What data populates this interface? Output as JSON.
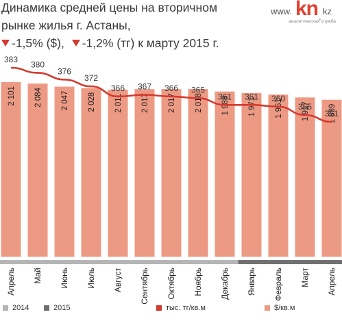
{
  "header": {
    "title_line1": "Динамика средней цены на вторичном",
    "title_line2": "рынке жилья г. Астаны,",
    "title_line3": "-1,5% ($),   -1,2% (тг) к марту 2015 г.",
    "change_usd": "-1,5% ($),",
    "change_kzt": "-1,2% (тг) к марту 2015 г.",
    "indicator_icon": "down-triangle-icon"
  },
  "logo": {
    "www": "www.",
    "kn": "kn",
    "dot": ".",
    "kz": "kz",
    "tagline": "аналитическая служба"
  },
  "legend": {
    "year_2014": "2014",
    "year_2015": "2015",
    "kzt_series": "тыс. тг/кв.м",
    "usd_series": "$/кв.м"
  },
  "colors": {
    "bar": "#ed9a84",
    "line": "#d43a2f",
    "year_2014": "#b5b5b5",
    "year_2015": "#707070",
    "accent": "#e0402f"
  },
  "chart_data": {
    "type": "bar",
    "categories": [
      "Апрель",
      "Май",
      "Июнь",
      "Июль",
      "Август",
      "Сентябрь",
      "Октябрь",
      "Ноябрь",
      "Декабрь",
      "Январь",
      "Февраль",
      "Март",
      "Апрель"
    ],
    "year_of_category": [
      "2014",
      "2014",
      "2014",
      "2014",
      "2014",
      "2014",
      "2014",
      "2014",
      "2014",
      "2015",
      "2015",
      "2015",
      "2015"
    ],
    "series": [
      {
        "name": "$/кв.м",
        "type": "bar",
        "values": [
          2101,
          2084,
          2047,
          2028,
          2011,
          2017,
          2017,
          2018,
          1988,
          1971,
          1951,
          1917,
          1889
        ],
        "labels": [
          "2 101",
          "2 084",
          "2 047",
          "2 028",
          "2 011",
          "2 017",
          "2 017",
          "2 018",
          "1 988",
          "1 971",
          "1 951",
          "1 917",
          "1 889"
        ]
      },
      {
        "name": "тыс. тг/кв.м",
        "type": "line",
        "values": [
          383,
          380,
          376,
          372,
          366,
          367,
          366,
          365,
          361,
          361,
          360,
          355,
          351
        ],
        "labels": [
          "383",
          "380",
          "376",
          "372",
          "366",
          "367",
          "366",
          "365",
          "361",
          "361",
          "360",
          "355",
          "351"
        ]
      }
    ]
  }
}
